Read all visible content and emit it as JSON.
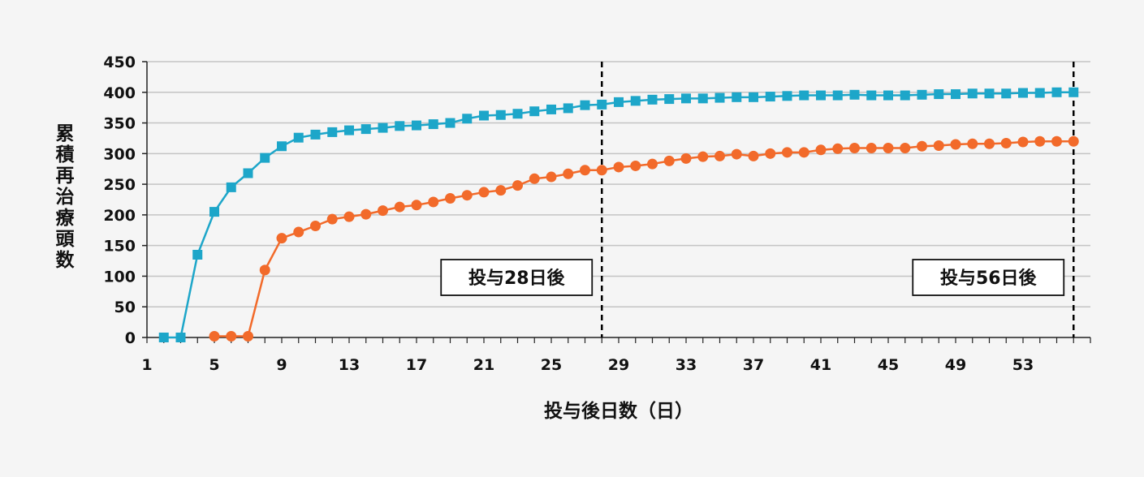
{
  "chart_data": {
    "type": "line",
    "ylabel": "累積再治療頭数",
    "xlabel": "投与後日数（日）",
    "ylim": [
      0,
      450
    ],
    "yticks": [
      0,
      50,
      100,
      150,
      200,
      250,
      300,
      350,
      400,
      450
    ],
    "xlim": [
      1,
      57
    ],
    "xticks": [
      1,
      5,
      9,
      13,
      17,
      21,
      25,
      29,
      33,
      37,
      41,
      45,
      49,
      53
    ],
    "grid": "horizontal",
    "colors": {
      "series1": "#1da6c9",
      "series2": "#f26a2a",
      "ref_line": "#000000"
    },
    "series": [
      {
        "marker": "square",
        "x": [
          2,
          3,
          4,
          5,
          6,
          7,
          8,
          9,
          10,
          11,
          12,
          13,
          14,
          15,
          16,
          17,
          18,
          19,
          20,
          21,
          22,
          23,
          24,
          25,
          26,
          27,
          28,
          29,
          30,
          31,
          32,
          33,
          34,
          35,
          36,
          37,
          38,
          39,
          40,
          41,
          42,
          43,
          44,
          45,
          46,
          47,
          48,
          49,
          50,
          51,
          52,
          53,
          54,
          55,
          56
        ],
        "values": [
          0,
          0,
          135,
          205,
          245,
          268,
          293,
          312,
          326,
          331,
          335,
          338,
          340,
          342,
          345,
          346,
          348,
          350,
          357,
          362,
          363,
          365,
          369,
          372,
          374,
          379,
          380,
          384,
          386,
          388,
          389,
          390,
          390,
          391,
          392,
          392,
          393,
          394,
          395,
          395,
          395,
          396,
          395,
          395,
          395,
          396,
          397,
          397,
          398,
          398,
          398,
          399,
          399,
          400,
          400
        ]
      },
      {
        "marker": "circle",
        "x": [
          5,
          6,
          7,
          8,
          9,
          10,
          11,
          12,
          13,
          14,
          15,
          16,
          17,
          18,
          19,
          20,
          21,
          22,
          23,
          24,
          25,
          26,
          27,
          28,
          29,
          30,
          31,
          32,
          33,
          34,
          35,
          36,
          37,
          38,
          39,
          40,
          41,
          42,
          43,
          44,
          45,
          46,
          47,
          48,
          49,
          50,
          51,
          52,
          53,
          54,
          55,
          56
        ],
        "values": [
          2,
          2,
          2,
          110,
          162,
          172,
          182,
          193,
          197,
          201,
          207,
          213,
          216,
          221,
          227,
          232,
          237,
          240,
          248,
          259,
          262,
          267,
          273,
          273,
          278,
          280,
          283,
          288,
          292,
          295,
          296,
          299,
          296,
          300,
          302,
          302,
          306,
          308,
          309,
          309,
          309,
          309,
          312,
          313,
          315,
          316,
          316,
          317,
          319,
          320,
          320,
          320
        ]
      }
    ],
    "reference_lines": [
      {
        "x": 28,
        "label": "投与28日後"
      },
      {
        "x": 56,
        "label": "投与56日後"
      }
    ]
  }
}
